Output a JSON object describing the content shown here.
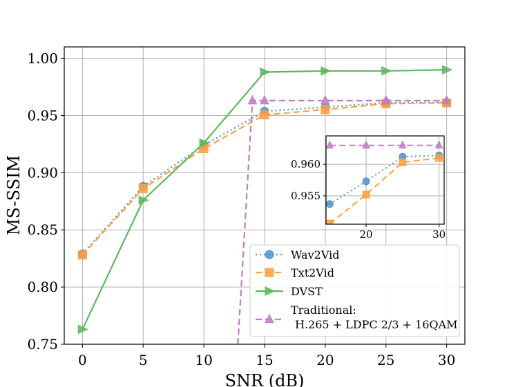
{
  "chart_data": {
    "type": "line",
    "xlabel": "SNR (dB)",
    "ylabel": "MS-SSIM",
    "xlim": [
      -1.5,
      31.5
    ],
    "ylim": [
      0.75,
      1.01
    ],
    "x_ticks": [
      0,
      5,
      10,
      15,
      20,
      25,
      30
    ],
    "y_ticks": [
      0.75,
      0.8,
      0.85,
      0.9,
      0.95,
      1.0
    ],
    "x_tick_labels": [
      "0",
      "5",
      "10",
      "15",
      "20",
      "25",
      "30"
    ],
    "y_tick_labels": [
      "0.75",
      "0.80",
      "0.85",
      "0.90",
      "0.95",
      "1.00"
    ],
    "grid": true,
    "legend_position": "lower-right",
    "series": [
      {
        "name": "Wav2Vid",
        "color": "#4c93c8",
        "line_style": "dotted",
        "marker": "circle",
        "x": [
          0,
          5,
          10,
          15,
          20,
          25,
          30
        ],
        "y": [
          0.829,
          0.888,
          0.924,
          0.9537,
          0.9573,
          0.9612,
          0.9614
        ]
      },
      {
        "name": "Txt2Vid",
        "color": "#ff9f40",
        "line_style": "dashed",
        "marker": "square",
        "x": [
          0,
          5,
          10,
          15,
          20,
          25,
          30
        ],
        "y": [
          0.828,
          0.886,
          0.921,
          0.9506,
          0.9552,
          0.9603,
          0.961
        ]
      },
      {
        "name": "DVST",
        "color": "#5cb85c",
        "line_style": "solid",
        "marker": "triangle-right",
        "x": [
          0,
          5,
          10,
          15,
          20,
          25,
          30
        ],
        "y": [
          0.763,
          0.876,
          0.926,
          0.988,
          0.989,
          0.989,
          0.99
        ]
      },
      {
        "name": "Traditional:\nH.265 + LDPC 2/3 + 16QAM",
        "legend_line1": "Traditional:",
        "legend_line2": "H.265 + LDPC 2/3 + 16QAM",
        "color": "#c27bc5",
        "line_style": "dashed",
        "marker": "triangle-up",
        "x": [
          12.8,
          14,
          15,
          20,
          25,
          30
        ],
        "y": [
          0.75,
          0.963,
          0.963,
          0.963,
          0.963,
          0.963
        ],
        "marker_x": [
          14,
          15,
          20,
          25,
          30
        ]
      }
    ],
    "inset": {
      "xlim": [
        14.5,
        30.7
      ],
      "ylim": [
        0.9505,
        0.9645
      ],
      "x_ticks": [
        20,
        30
      ],
      "x_tick_labels": [
        "20",
        "30"
      ],
      "y_ticks": [
        0.955,
        0.96
      ],
      "y_tick_labels": [
        "0.955",
        "0.960"
      ]
    }
  }
}
